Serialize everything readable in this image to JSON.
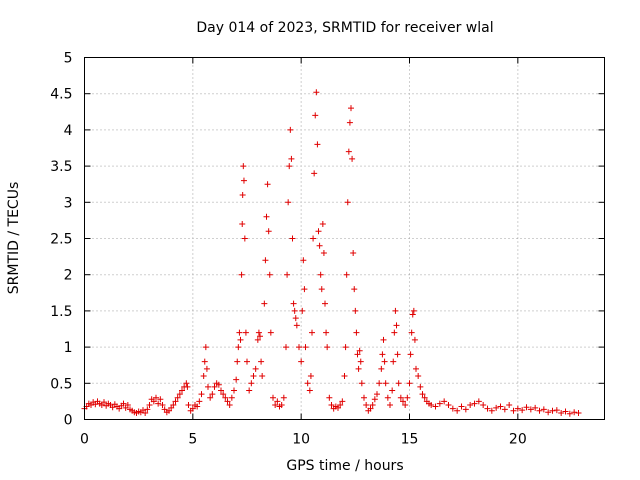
{
  "chart_data": {
    "type": "scatter",
    "title": "Day 014 of 2023, SRMTID for receiver wlal",
    "xlabel": "GPS time / hours",
    "ylabel": "SRMTID / TECUs",
    "xlim": [
      0,
      24
    ],
    "ylim": [
      0,
      5
    ],
    "xticks": [
      0,
      5,
      10,
      15,
      20
    ],
    "xtick_labels": [
      "0",
      "5",
      "10",
      "15",
      "20"
    ],
    "yticks": [
      0,
      0.5,
      1,
      1.5,
      2,
      2.5,
      3,
      3.5,
      4,
      4.5,
      5
    ],
    "ytick_labels": [
      "0",
      "0.5",
      "1",
      "1.5",
      "2",
      "2.5",
      "3",
      "3.5",
      "4",
      "4.5",
      "5"
    ],
    "grid": true,
    "marker": "+",
    "color": "#e00000",
    "series": [
      {
        "name": "SRMTID",
        "points": [
          [
            0.0,
            0.15
          ],
          [
            0.1,
            0.18
          ],
          [
            0.2,
            0.22
          ],
          [
            0.3,
            0.2
          ],
          [
            0.4,
            0.24
          ],
          [
            0.5,
            0.21
          ],
          [
            0.6,
            0.25
          ],
          [
            0.7,
            0.22
          ],
          [
            0.8,
            0.2
          ],
          [
            0.9,
            0.24
          ],
          [
            1.0,
            0.19
          ],
          [
            1.1,
            0.22
          ],
          [
            1.2,
            0.2
          ],
          [
            1.3,
            0.17
          ],
          [
            1.4,
            0.21
          ],
          [
            1.5,
            0.18
          ],
          [
            1.6,
            0.15
          ],
          [
            1.7,
            0.19
          ],
          [
            1.8,
            0.22
          ],
          [
            1.9,
            0.16
          ],
          [
            2.0,
            0.2
          ],
          [
            2.1,
            0.14
          ],
          [
            2.2,
            0.12
          ],
          [
            2.3,
            0.1
          ],
          [
            2.4,
            0.09
          ],
          [
            2.5,
            0.11
          ],
          [
            2.6,
            0.1
          ],
          [
            2.7,
            0.13
          ],
          [
            2.8,
            0.09
          ],
          [
            2.9,
            0.14
          ],
          [
            3.0,
            0.2
          ],
          [
            3.1,
            0.28
          ],
          [
            3.2,
            0.25
          ],
          [
            3.3,
            0.3
          ],
          [
            3.4,
            0.22
          ],
          [
            3.5,
            0.28
          ],
          [
            3.6,
            0.2
          ],
          [
            3.7,
            0.14
          ],
          [
            3.8,
            0.1
          ],
          [
            3.9,
            0.12
          ],
          [
            4.0,
            0.16
          ],
          [
            4.1,
            0.2
          ],
          [
            4.2,
            0.25
          ],
          [
            4.3,
            0.3
          ],
          [
            4.4,
            0.35
          ],
          [
            4.5,
            0.4
          ],
          [
            4.6,
            0.45
          ],
          [
            4.7,
            0.5
          ],
          [
            4.75,
            0.45
          ],
          [
            4.8,
            0.2
          ],
          [
            4.9,
            0.12
          ],
          [
            5.0,
            0.15
          ],
          [
            5.1,
            0.2
          ],
          [
            5.2,
            0.18
          ],
          [
            5.3,
            0.25
          ],
          [
            5.4,
            0.35
          ],
          [
            5.5,
            0.6
          ],
          [
            5.55,
            0.8
          ],
          [
            5.6,
            1.0
          ],
          [
            5.65,
            0.7
          ],
          [
            5.7,
            0.45
          ],
          [
            5.8,
            0.3
          ],
          [
            5.9,
            0.35
          ],
          [
            6.0,
            0.45
          ],
          [
            6.1,
            0.5
          ],
          [
            6.2,
            0.48
          ],
          [
            6.3,
            0.4
          ],
          [
            6.4,
            0.35
          ],
          [
            6.5,
            0.3
          ],
          [
            6.6,
            0.25
          ],
          [
            6.7,
            0.2
          ],
          [
            6.8,
            0.3
          ],
          [
            6.9,
            0.4
          ],
          [
            7.0,
            0.55
          ],
          [
            7.05,
            0.8
          ],
          [
            7.1,
            1.0
          ],
          [
            7.15,
            1.2
          ],
          [
            7.2,
            1.1
          ],
          [
            7.25,
            2.0
          ],
          [
            7.28,
            2.7
          ],
          [
            7.3,
            3.1
          ],
          [
            7.33,
            3.5
          ],
          [
            7.36,
            3.3
          ],
          [
            7.4,
            2.5
          ],
          [
            7.45,
            1.2
          ],
          [
            7.5,
            0.8
          ],
          [
            7.6,
            0.4
          ],
          [
            7.7,
            0.5
          ],
          [
            7.8,
            0.6
          ],
          [
            7.9,
            0.7
          ],
          [
            8.0,
            1.1
          ],
          [
            8.05,
            1.2
          ],
          [
            8.1,
            1.15
          ],
          [
            8.15,
            0.8
          ],
          [
            8.2,
            0.6
          ],
          [
            8.3,
            1.6
          ],
          [
            8.35,
            2.2
          ],
          [
            8.4,
            2.8
          ],
          [
            8.45,
            3.25
          ],
          [
            8.5,
            2.6
          ],
          [
            8.55,
            2.0
          ],
          [
            8.6,
            1.2
          ],
          [
            8.7,
            0.3
          ],
          [
            8.8,
            0.2
          ],
          [
            8.9,
            0.25
          ],
          [
            9.0,
            0.18
          ],
          [
            9.1,
            0.2
          ],
          [
            9.2,
            0.3
          ],
          [
            9.3,
            1.0
          ],
          [
            9.35,
            2.0
          ],
          [
            9.4,
            3.0
          ],
          [
            9.45,
            3.5
          ],
          [
            9.5,
            4.0
          ],
          [
            9.55,
            3.6
          ],
          [
            9.6,
            2.5
          ],
          [
            9.65,
            1.6
          ],
          [
            9.7,
            1.5
          ],
          [
            9.75,
            1.4
          ],
          [
            9.8,
            1.3
          ],
          [
            9.9,
            1.0
          ],
          [
            10.0,
            0.8
          ],
          [
            10.05,
            1.5
          ],
          [
            10.1,
            2.2
          ],
          [
            10.15,
            1.8
          ],
          [
            10.2,
            1.0
          ],
          [
            10.3,
            0.5
          ],
          [
            10.4,
            0.4
          ],
          [
            10.45,
            0.6
          ],
          [
            10.5,
            1.2
          ],
          [
            10.55,
            2.5
          ],
          [
            10.6,
            3.4
          ],
          [
            10.65,
            4.2
          ],
          [
            10.7,
            4.52
          ],
          [
            10.75,
            3.8
          ],
          [
            10.8,
            2.6
          ],
          [
            10.85,
            2.4
          ],
          [
            10.9,
            2.0
          ],
          [
            10.95,
            1.8
          ],
          [
            11.0,
            2.7
          ],
          [
            11.05,
            2.3
          ],
          [
            11.1,
            1.6
          ],
          [
            11.15,
            1.2
          ],
          [
            11.2,
            1.0
          ],
          [
            11.3,
            0.3
          ],
          [
            11.4,
            0.2
          ],
          [
            11.5,
            0.15
          ],
          [
            11.6,
            0.18
          ],
          [
            11.7,
            0.16
          ],
          [
            11.8,
            0.2
          ],
          [
            11.9,
            0.25
          ],
          [
            12.0,
            0.6
          ],
          [
            12.05,
            1.0
          ],
          [
            12.1,
            2.0
          ],
          [
            12.15,
            3.0
          ],
          [
            12.2,
            3.7
          ],
          [
            12.25,
            4.1
          ],
          [
            12.3,
            4.3
          ],
          [
            12.35,
            3.6
          ],
          [
            12.4,
            2.3
          ],
          [
            12.45,
            1.8
          ],
          [
            12.5,
            1.5
          ],
          [
            12.55,
            1.2
          ],
          [
            12.6,
            0.9
          ],
          [
            12.65,
            0.7
          ],
          [
            12.7,
            0.95
          ],
          [
            12.75,
            0.8
          ],
          [
            12.8,
            0.5
          ],
          [
            12.9,
            0.3
          ],
          [
            13.0,
            0.2
          ],
          [
            13.1,
            0.12
          ],
          [
            13.2,
            0.15
          ],
          [
            13.3,
            0.2
          ],
          [
            13.4,
            0.28
          ],
          [
            13.5,
            0.35
          ],
          [
            13.6,
            0.5
          ],
          [
            13.7,
            0.7
          ],
          [
            13.75,
            0.9
          ],
          [
            13.8,
            1.1
          ],
          [
            13.85,
            0.8
          ],
          [
            13.9,
            0.5
          ],
          [
            14.0,
            0.3
          ],
          [
            14.1,
            0.2
          ],
          [
            14.2,
            0.4
          ],
          [
            14.25,
            0.8
          ],
          [
            14.3,
            1.2
          ],
          [
            14.35,
            1.5
          ],
          [
            14.4,
            1.3
          ],
          [
            14.45,
            0.9
          ],
          [
            14.5,
            0.5
          ],
          [
            14.6,
            0.3
          ],
          [
            14.7,
            0.25
          ],
          [
            14.8,
            0.2
          ],
          [
            14.9,
            0.3
          ],
          [
            15.0,
            0.5
          ],
          [
            15.05,
            0.9
          ],
          [
            15.1,
            1.2
          ],
          [
            15.15,
            1.45
          ],
          [
            15.2,
            1.5
          ],
          [
            15.25,
            1.1
          ],
          [
            15.3,
            0.7
          ],
          [
            15.4,
            0.6
          ],
          [
            15.5,
            0.45
          ],
          [
            15.6,
            0.35
          ],
          [
            15.7,
            0.3
          ],
          [
            15.8,
            0.25
          ],
          [
            15.9,
            0.22
          ],
          [
            16.0,
            0.2
          ],
          [
            16.2,
            0.18
          ],
          [
            16.4,
            0.22
          ],
          [
            16.6,
            0.25
          ],
          [
            16.8,
            0.2
          ],
          [
            17.0,
            0.15
          ],
          [
            17.2,
            0.12
          ],
          [
            17.4,
            0.18
          ],
          [
            17.6,
            0.14
          ],
          [
            17.8,
            0.2
          ],
          [
            18.0,
            0.22
          ],
          [
            18.2,
            0.25
          ],
          [
            18.4,
            0.2
          ],
          [
            18.6,
            0.15
          ],
          [
            18.8,
            0.12
          ],
          [
            19.0,
            0.16
          ],
          [
            19.2,
            0.18
          ],
          [
            19.4,
            0.14
          ],
          [
            19.6,
            0.2
          ],
          [
            19.8,
            0.12
          ],
          [
            20.0,
            0.15
          ],
          [
            20.2,
            0.13
          ],
          [
            20.4,
            0.17
          ],
          [
            20.6,
            0.14
          ],
          [
            20.8,
            0.16
          ],
          [
            21.0,
            0.12
          ],
          [
            21.2,
            0.14
          ],
          [
            21.4,
            0.1
          ],
          [
            21.6,
            0.12
          ],
          [
            21.8,
            0.13
          ],
          [
            22.0,
            0.09
          ],
          [
            22.2,
            0.11
          ],
          [
            22.4,
            0.08
          ],
          [
            22.6,
            0.1
          ],
          [
            22.8,
            0.09
          ]
        ]
      }
    ]
  }
}
